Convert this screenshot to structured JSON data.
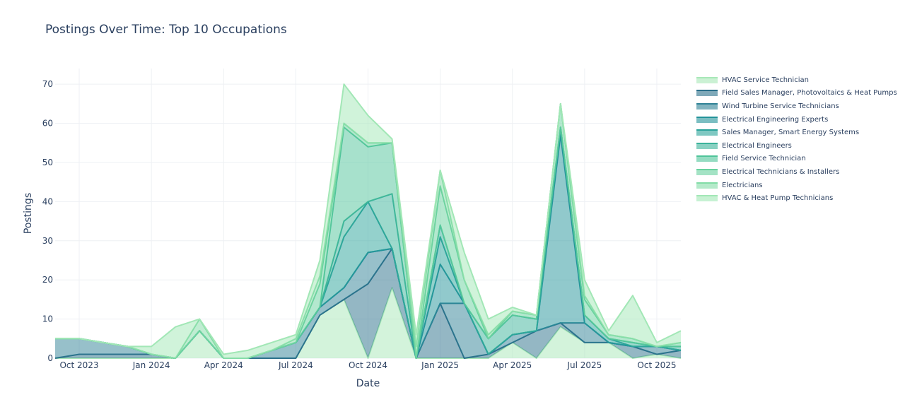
{
  "chart_data": {
    "type": "area",
    "stacked": true,
    "title": "Postings Over Time: Top 10 Occupations",
    "xlabel": "Date",
    "ylabel": "Postings",
    "ylim": [
      0,
      74
    ],
    "yticks": [
      0,
      10,
      20,
      30,
      40,
      50,
      60,
      70
    ],
    "xtick_labels": [
      "Oct 2023",
      "Jan 2024",
      "Apr 2024",
      "Jul 2024",
      "Oct 2024",
      "Jan 2025",
      "Apr 2025",
      "Jul 2025",
      "Oct 2025"
    ],
    "xtick_months": [
      1,
      4,
      7,
      10,
      13,
      16,
      19,
      22,
      25
    ],
    "x": [
      "2023-09",
      "2023-10",
      "2023-11",
      "2023-12",
      "2024-01",
      "2024-02",
      "2024-03",
      "2024-04",
      "2024-05",
      "2024-06",
      "2024-07",
      "2024-08",
      "2024-09",
      "2024-10",
      "2024-11",
      "2024-12",
      "2025-01",
      "2025-02",
      "2025-03",
      "2025-04",
      "2025-05",
      "2025-06",
      "2025-07",
      "2025-08",
      "2025-09",
      "2025-10",
      "2025-11"
    ],
    "legend_position": "right",
    "series": [
      {
        "name": "HVAC Service Technician",
        "color": "#a8e8b8",
        "values": [
          0,
          0,
          0,
          0,
          0,
          0,
          7,
          0,
          0,
          0,
          0,
          11,
          15,
          0,
          18,
          0,
          0,
          0,
          0,
          4,
          0,
          8,
          4,
          4,
          0,
          1,
          0
        ]
      },
      {
        "name": "Field Sales Manager, Photovoltaics & Heat Pumps",
        "color": "#2a6f8a",
        "values": [
          0,
          1,
          1,
          1,
          1,
          0,
          0,
          0,
          0,
          0,
          0,
          0,
          0,
          19,
          10,
          0,
          14,
          0,
          1,
          0,
          7,
          1,
          0,
          0,
          3,
          0,
          2
        ]
      },
      {
        "name": "Wind Turbine Service Technicians",
        "color": "#2f8296",
        "values": [
          5,
          4,
          3,
          2,
          0,
          0,
          0,
          0,
          0,
          2,
          4,
          2,
          3,
          8,
          0,
          0,
          0,
          14,
          0,
          2,
          0,
          0,
          5,
          0,
          0,
          2,
          0
        ]
      },
      {
        "name": "Electrical Engineering Experts",
        "color": "#23939a",
        "values": [
          0,
          0,
          0,
          0,
          0,
          0,
          0,
          0,
          0,
          0,
          0,
          0,
          0,
          0,
          0,
          0,
          10,
          0,
          0,
          0,
          0,
          48,
          0,
          0,
          0,
          0,
          0
        ]
      },
      {
        "name": "Sales Manager, Smart Energy Systems",
        "color": "#2aa39a",
        "values": [
          0,
          0,
          0,
          0,
          0,
          0,
          0,
          0,
          0,
          0,
          0,
          0,
          13,
          13,
          0,
          0,
          7,
          0,
          0,
          0,
          0,
          2,
          2,
          1,
          0,
          0,
          0
        ]
      },
      {
        "name": "Electrical Engineers",
        "color": "#3bb39a",
        "values": [
          0,
          0,
          0,
          0,
          0,
          0,
          0,
          0,
          0,
          0,
          0,
          0,
          4,
          0,
          14,
          0,
          3,
          0,
          4,
          5,
          3,
          0,
          0,
          0,
          1,
          0,
          1
        ]
      },
      {
        "name": "Field Service Technician",
        "color": "#4fc49a",
        "values": [
          0,
          0,
          0,
          0,
          0,
          0,
          0,
          0,
          0,
          0,
          0,
          0,
          24,
          14,
          13,
          0,
          0,
          0,
          0,
          0,
          0,
          0,
          0,
          0,
          0,
          0,
          0
        ]
      },
      {
        "name": "Electrical Technicians & Installers",
        "color": "#68d19e",
        "values": [
          0,
          0,
          0,
          0,
          0,
          0,
          0,
          0,
          0,
          0,
          0,
          6,
          1,
          1,
          0,
          0,
          10,
          6,
          0,
          1,
          1,
          6,
          4,
          1,
          1,
          0,
          1
        ]
      },
      {
        "name": "Electricians",
        "color": "#82dca6",
        "values": [
          0,
          0,
          0,
          0,
          0,
          0,
          3,
          0,
          0,
          0,
          1,
          2,
          0,
          0,
          0,
          3,
          4,
          0,
          1,
          0,
          0,
          0,
          1,
          0,
          0,
          0,
          0
        ]
      },
      {
        "name": "HVAC & Heat Pump Technicians",
        "color": "#a2e7b6",
        "values": [
          0,
          0,
          0,
          0,
          2,
          8,
          0,
          1,
          2,
          2,
          1,
          4,
          10,
          7,
          1,
          3,
          0,
          7,
          4,
          1,
          0,
          0,
          4,
          1,
          11,
          1,
          3
        ]
      }
    ]
  }
}
